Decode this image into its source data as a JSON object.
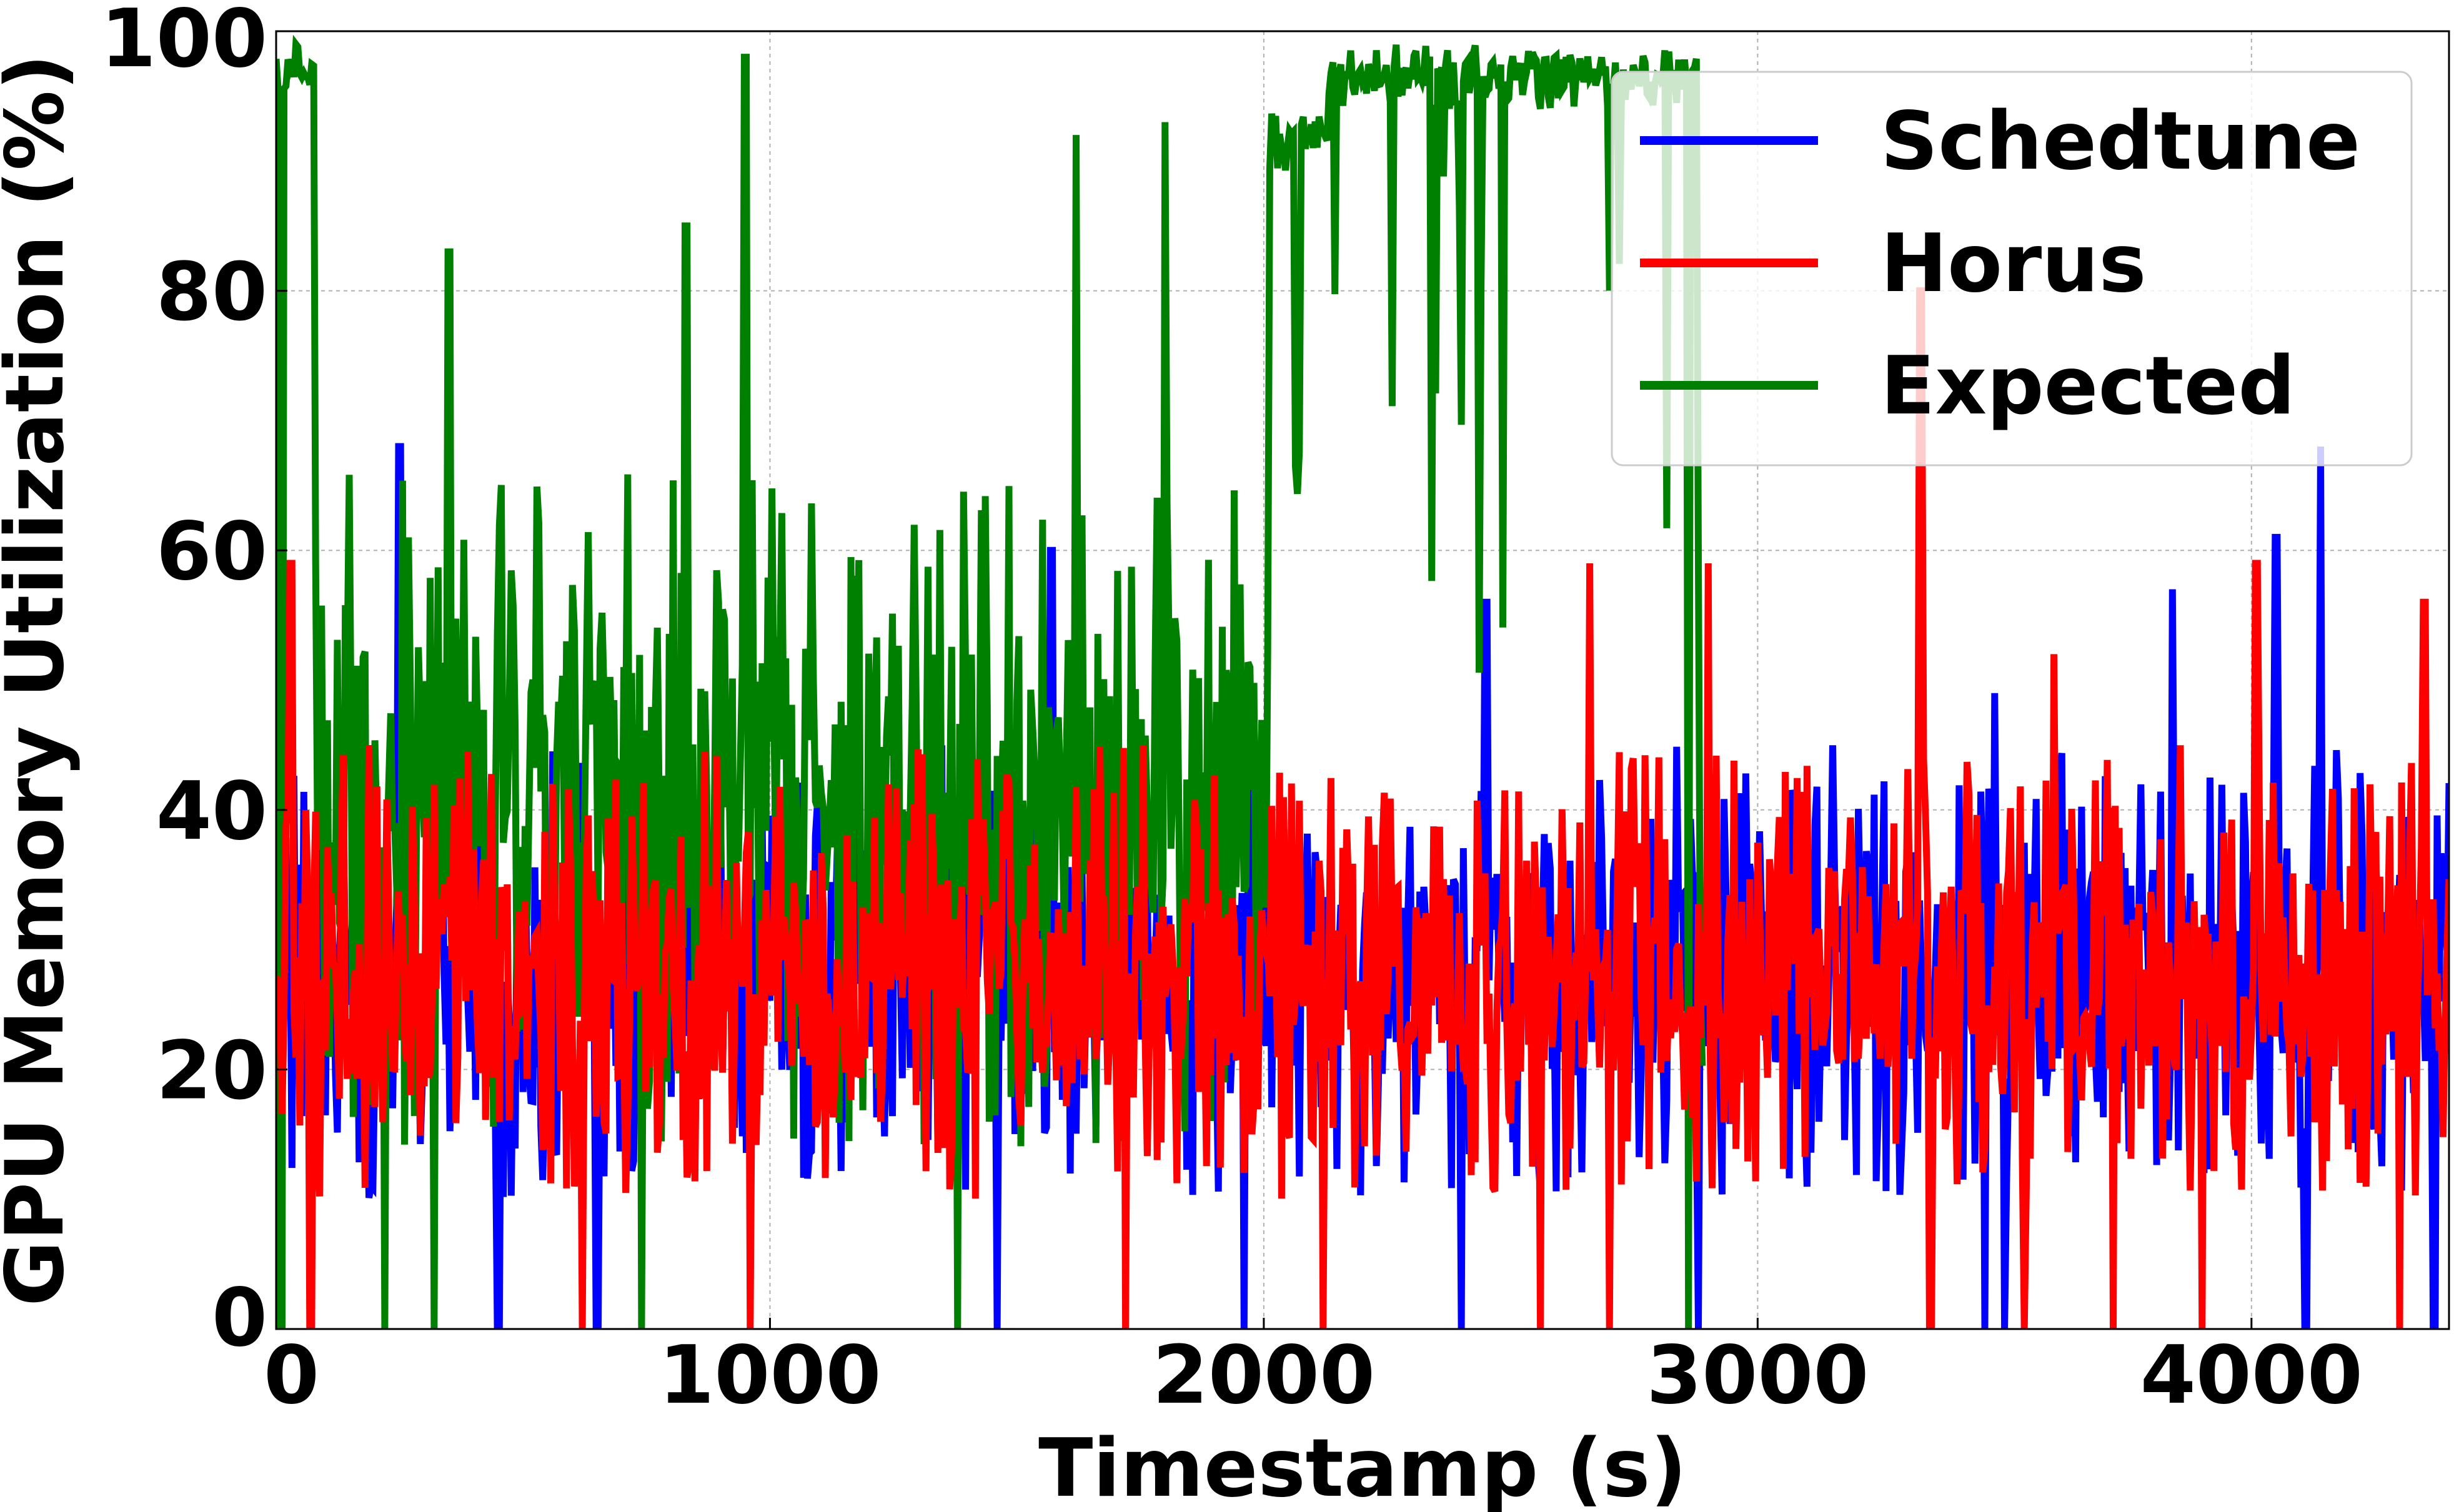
{
  "chart_data": {
    "type": "line",
    "title": "",
    "xlabel": "Timestamp (s)",
    "ylabel": "GPU Memory Utilization (%)",
    "xlim": [
      0,
      4400
    ],
    "ylim": [
      0,
      100
    ],
    "xticks": [
      0,
      1000,
      2000,
      3000,
      4000
    ],
    "yticks": [
      0,
      20,
      40,
      60,
      80,
      100
    ],
    "grid": true,
    "legend_position": "top-right",
    "series": [
      {
        "name": "Schedtune",
        "color": "#0000ff",
        "x_range": [
          0,
          4400
        ],
        "approx_mean": 28,
        "approx_spread": [
          10,
          45
        ],
        "peaks": [
          [
            250,
            68
          ],
          [
            1570,
            60
          ],
          [
            2450,
            56
          ],
          [
            3480,
            49
          ],
          [
            3840,
            57
          ],
          [
            4050,
            61
          ],
          [
            4140,
            68
          ]
        ],
        "dips": [
          [
            450,
            0
          ],
          [
            650,
            0
          ],
          [
            1460,
            0
          ],
          [
            1960,
            0
          ],
          [
            2400,
            0
          ],
          [
            2880,
            0
          ],
          [
            3460,
            0
          ],
          [
            3500,
            0
          ],
          [
            4110,
            0
          ],
          [
            4370,
            0
          ]
        ]
      },
      {
        "name": "Horus",
        "color": "#ff0000",
        "x_range": [
          0,
          4400
        ],
        "approx_mean": 27,
        "approx_spread": [
          10,
          45
        ],
        "peaks": [
          [
            30,
            59
          ],
          [
            2660,
            59
          ],
          [
            2900,
            59
          ],
          [
            3330,
            80
          ],
          [
            3600,
            52
          ],
          [
            3720,
            55
          ],
          [
            4010,
            59
          ],
          [
            4350,
            56
          ]
        ],
        "dips": [
          [
            70,
            0
          ],
          [
            620,
            0
          ],
          [
            960,
            0
          ],
          [
            1720,
            0
          ],
          [
            2120,
            0
          ],
          [
            2560,
            0
          ],
          [
            2700,
            0
          ],
          [
            3350,
            0
          ],
          [
            3540,
            0
          ],
          [
            3720,
            0
          ],
          [
            3900,
            0
          ],
          [
            4300,
            0
          ]
        ]
      },
      {
        "name": "Expected",
        "color": "#008000",
        "x_range": [
          0,
          2890
        ],
        "approx_mean": 40,
        "approx_spread": [
          13,
          65
        ],
        "segments": [
          {
            "x": [
              0,
              80
            ],
            "level": 97
          },
          {
            "x": [
              80,
              2010
            ],
            "level": 42,
            "range": [
              14,
              66
            ]
          },
          {
            "x": [
              2010,
              2130
            ],
            "level": 92
          },
          {
            "x": [
              2130,
              2880
            ],
            "level": 97
          }
        ],
        "peaks": [
          [
            40,
            99
          ],
          [
            350,
            83
          ],
          [
            830,
            85
          ],
          [
            950,
            98
          ],
          [
            1620,
            92
          ],
          [
            1800,
            93
          ]
        ],
        "dips": [
          [
            10,
            0
          ],
          [
            220,
            0
          ],
          [
            320,
            0
          ],
          [
            740,
            0
          ],
          [
            1380,
            0
          ],
          [
            2860,
            0
          ]
        ]
      }
    ]
  }
}
